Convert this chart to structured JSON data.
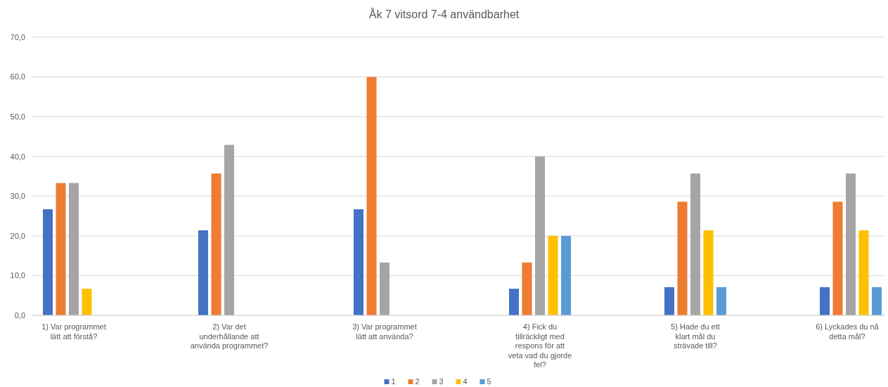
{
  "chart_data": {
    "type": "bar",
    "title": "Åk 7 vitsord 7-4 användbarhet",
    "categories": [
      "1) Var programmet lätt att förstå?",
      "2) Var det underhållande att använda programmet?",
      "3) Var programmet lätt att använda?",
      "4) Fick du tillräckligt med respons för att veta vad du gjorde fel?",
      "5) Hade du ett klart mål du strävade till?",
      "6) Lyckades du nå detta mål?"
    ],
    "series": [
      {
        "name": "1",
        "color": "#4472c4",
        "values": [
          26.7,
          21.4,
          26.7,
          6.7,
          7.1,
          7.1
        ]
      },
      {
        "name": "2",
        "color": "#ed7d31",
        "values": [
          33.3,
          35.7,
          60.0,
          13.3,
          28.6,
          28.6
        ]
      },
      {
        "name": "3",
        "color": "#a5a5a5",
        "values": [
          33.3,
          42.9,
          13.3,
          40.0,
          35.7,
          35.7
        ]
      },
      {
        "name": "4",
        "color": "#ffc000",
        "values": [
          6.7,
          0,
          0,
          20.0,
          21.4,
          21.4
        ]
      },
      {
        "name": "5",
        "color": "#5b9bd5",
        "values": [
          0,
          0,
          0,
          20.0,
          7.1,
          7.1
        ]
      }
    ],
    "ylim": [
      0,
      70
    ],
    "yticks": [
      {
        "value": 0,
        "label": "0,0"
      },
      {
        "value": 10,
        "label": "10,0"
      },
      {
        "value": 20,
        "label": "20,0"
      },
      {
        "value": 30,
        "label": "30,0"
      },
      {
        "value": 40,
        "label": "40,0"
      },
      {
        "value": 50,
        "label": "50,0"
      },
      {
        "value": 60,
        "label": "60,0"
      },
      {
        "value": 70,
        "label": "70,0"
      }
    ],
    "grid": "y",
    "legend": "bottom"
  }
}
